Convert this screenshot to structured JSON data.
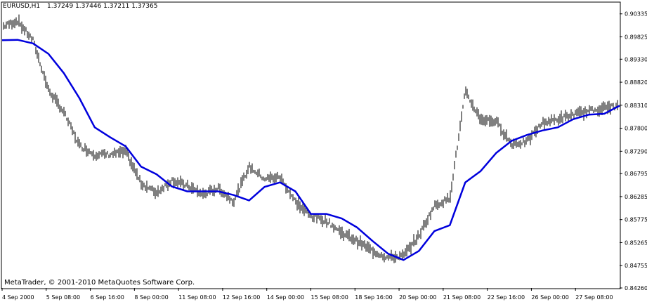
{
  "header": {
    "symbol": "EURUSD,H1",
    "ohlc": "1.37249 1.37446 1.37211 1.37365"
  },
  "copyright": "MetaTrader, © 2001-2010 MetaQuotes Software Corp.",
  "colors": {
    "background": "#ffffff",
    "bars": "#000000",
    "indicator_line": "#0000dd",
    "frame": "#000000"
  },
  "chart_data": {
    "type": "line",
    "title": "EURUSD,H1",
    "ylim": [
      0.8426,
      0.9058
    ],
    "y_ticks": [
      "0.90335",
      "0.89825",
      "0.89330",
      "0.88820",
      "0.88310",
      "0.87800",
      "0.87290",
      "0.86795",
      "0.86285",
      "0.85775",
      "0.85265",
      "0.84755",
      "0.84260"
    ],
    "y_tick_values": [
      0.90335,
      0.89825,
      0.8933,
      0.8882,
      0.8831,
      0.878,
      0.8729,
      0.86795,
      0.86285,
      0.85775,
      0.85265,
      0.84755,
      0.8426
    ],
    "x_ticks": [
      "4 Sep 2000",
      "5 Sep 08:00",
      "6 Sep 16:00",
      "8 Sep 00:00",
      "11 Sep 08:00",
      "12 Sep 16:00",
      "14 Sep 00:00",
      "15 Sep 08:00",
      "18 Sep 16:00",
      "20 Sep 00:00",
      "21 Sep 08:00",
      "22 Sep 16:00",
      "26 Sep 00:00",
      "27 Sep 08:00"
    ],
    "grid": false,
    "series": [
      {
        "kind": "price_bars",
        "x": [
          0,
          2.5,
          5,
          7.5,
          10,
          12.5,
          15,
          17.5,
          20,
          22.5,
          25,
          27.5,
          30,
          32.5,
          35,
          37.5,
          40,
          42.5,
          45,
          47.5,
          50,
          52.5,
          55,
          57.5,
          60,
          62.5,
          65,
          67.5,
          70,
          72.5,
          75,
          77.5,
          80,
          82.5,
          85,
          87.5,
          90,
          92.5,
          95,
          97.5,
          100
        ],
        "values": [
          0.9005,
          0.9018,
          0.8975,
          0.8865,
          0.8815,
          0.8742,
          0.8722,
          0.8722,
          0.8728,
          0.8658,
          0.8637,
          0.8665,
          0.8652,
          0.8633,
          0.8647,
          0.8618,
          0.8695,
          0.8668,
          0.8672,
          0.8617,
          0.8585,
          0.8575,
          0.8548,
          0.853,
          0.8508,
          0.8493,
          0.8497,
          0.8542,
          0.8608,
          0.8625,
          0.886,
          0.88,
          0.8795,
          0.8745,
          0.875,
          0.8792,
          0.88,
          0.881,
          0.8818,
          0.8825,
          0.883
        ]
      },
      {
        "kind": "moving_average",
        "x": [
          0,
          2.5,
          5,
          7.5,
          10,
          12.5,
          15,
          17.5,
          20,
          22.5,
          25,
          27.5,
          30,
          32.5,
          35,
          37.5,
          40,
          42.5,
          45,
          47.5,
          50,
          52.5,
          55,
          57.5,
          60,
          62.5,
          65,
          67.5,
          70,
          72.5,
          75,
          77.5,
          80,
          82.5,
          85,
          87.5,
          90,
          92.5,
          95,
          97.5,
          100
        ],
        "values": [
          0.8975,
          0.8976,
          0.8968,
          0.8945,
          0.8902,
          0.8847,
          0.8782,
          0.876,
          0.874,
          0.8695,
          0.8678,
          0.8651,
          0.864,
          0.864,
          0.864,
          0.8632,
          0.862,
          0.865,
          0.866,
          0.864,
          0.859,
          0.859,
          0.858,
          0.856,
          0.853,
          0.8502,
          0.8488,
          0.8508,
          0.8552,
          0.8565,
          0.866,
          0.8685,
          0.8725,
          0.8752,
          0.8765,
          0.8775,
          0.8782,
          0.88,
          0.881,
          0.8812,
          0.883
        ]
      }
    ]
  }
}
